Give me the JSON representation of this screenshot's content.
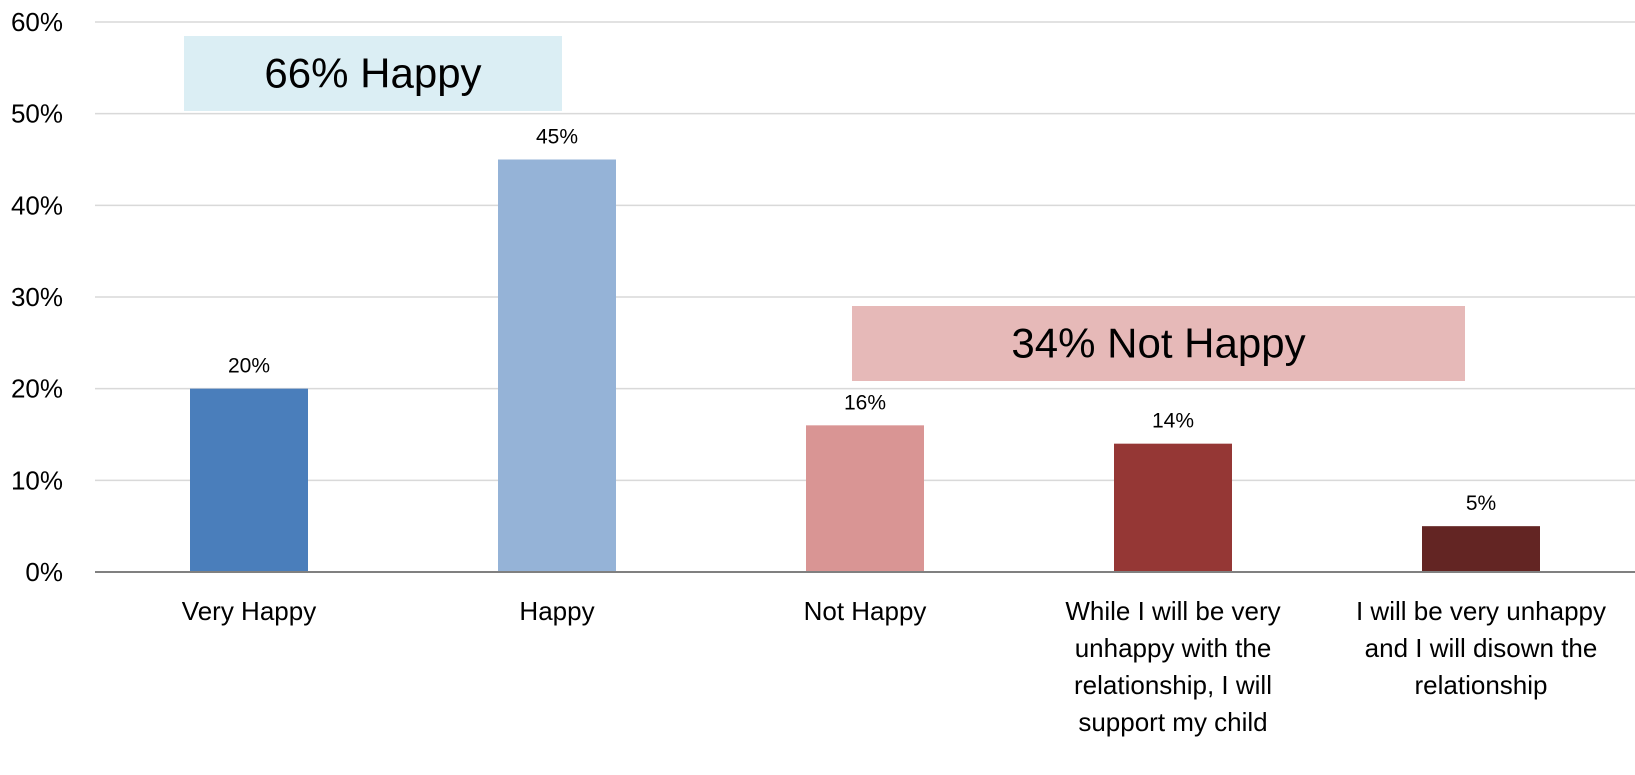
{
  "chart_data": {
    "type": "bar",
    "categories": [
      [
        "Very Happy"
      ],
      [
        "Happy"
      ],
      [
        "Not Happy"
      ],
      [
        "While I will be very",
        "unhappy with the",
        "relationship, I will",
        "support my child"
      ],
      [
        "I will be very unhappy",
        "and I will disown the",
        "relationship"
      ]
    ],
    "values": [
      20,
      45,
      16,
      14,
      5
    ],
    "data_labels": [
      "20%",
      "45%",
      "16%",
      "14%",
      "5%"
    ],
    "bar_colors": [
      "#4a7ebb",
      "#95b3d7",
      "#d99594",
      "#953735",
      "#632523"
    ],
    "ylim": [
      0,
      60
    ],
    "yticks": [
      0,
      10,
      20,
      30,
      40,
      50,
      60
    ],
    "ytick_labels": [
      "0%",
      "10%",
      "20%",
      "30%",
      "40%",
      "50%",
      "60%"
    ],
    "grid": true,
    "title": "",
    "xlabel": "",
    "ylabel": "",
    "annotations": [
      {
        "text": "66% Happy",
        "color": "#dbeef4"
      },
      {
        "text": "34% Not Happy",
        "color": "#e6b9b8"
      }
    ]
  }
}
